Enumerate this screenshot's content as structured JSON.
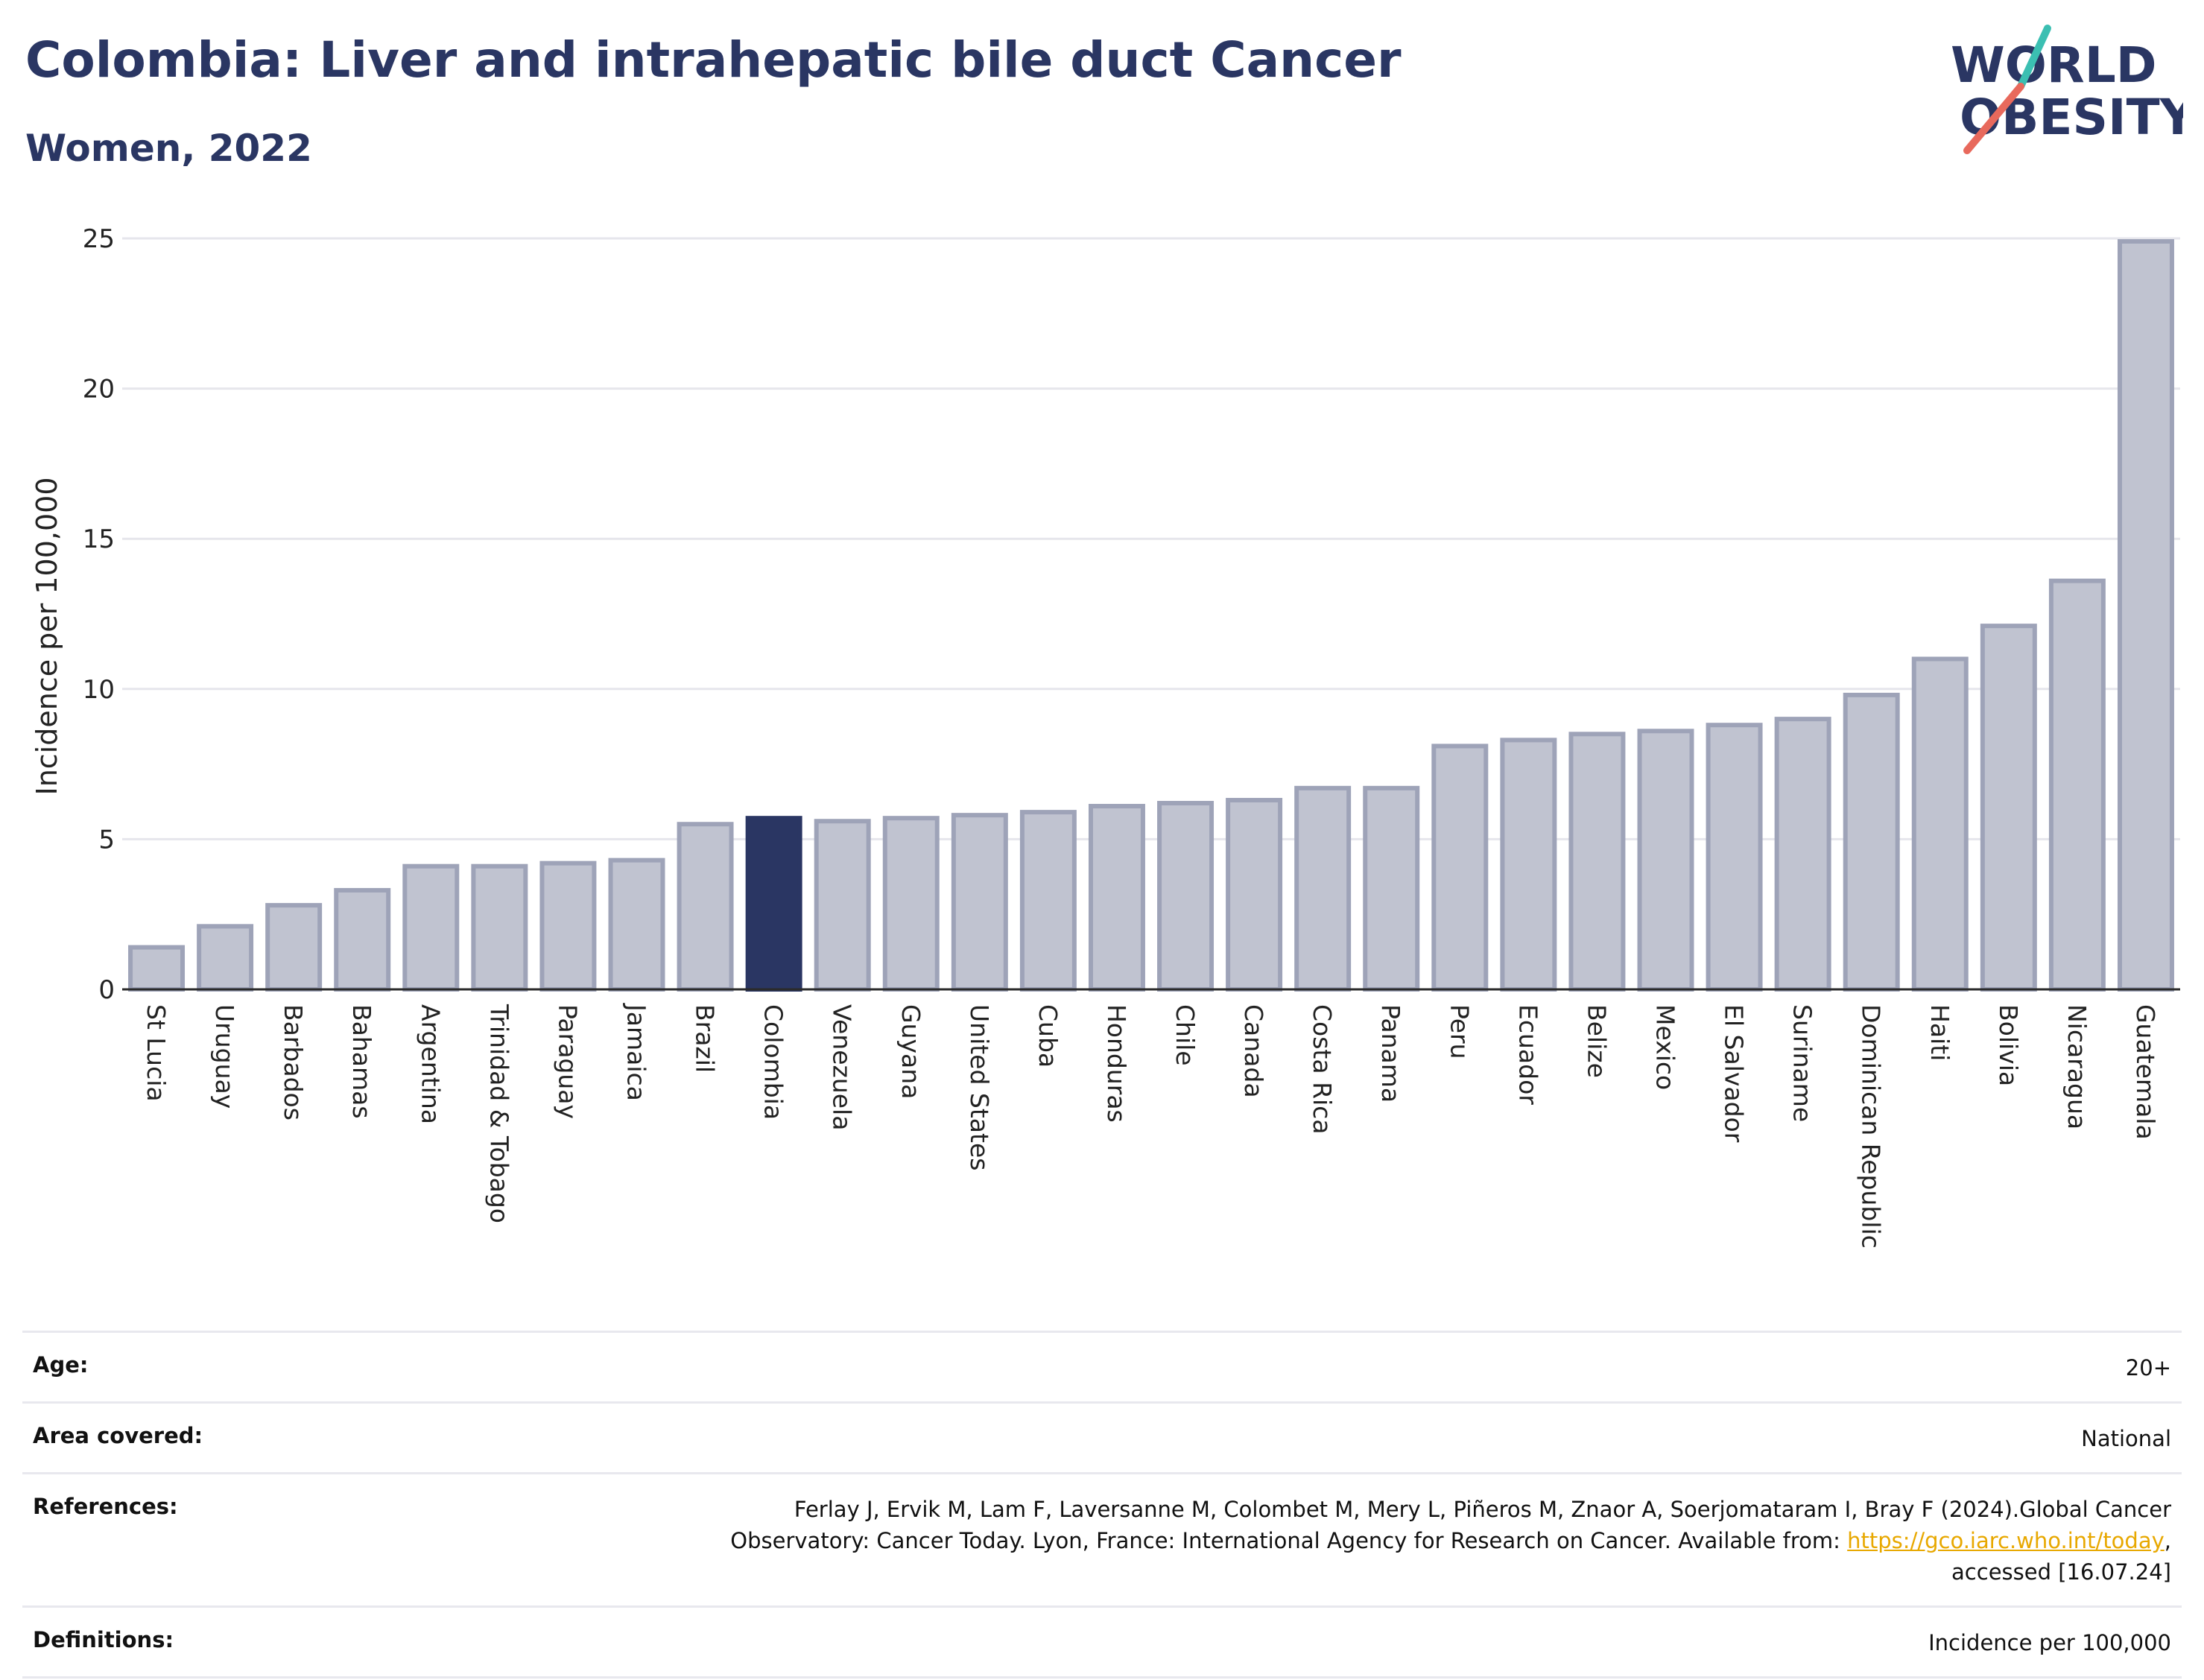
{
  "header": {
    "title": "Colombia: Liver and intrahepatic bile duct Cancer",
    "subtitle": "Women, 2022"
  },
  "logo": {
    "line1": "WORLD",
    "line2": "OBESITY",
    "text_color": "#2a3663",
    "slash_colors": [
      "#3bbfb2",
      "#e8695c"
    ]
  },
  "colors": {
    "bar_default": "#c0c3d0",
    "bar_border": "#9ea3b8",
    "bar_highlight": "#2a3663",
    "grid": "#e6e6ec",
    "link": "#e8a800"
  },
  "chart_data": {
    "type": "bar",
    "ylabel": "Incidence per 100,000",
    "ylim": [
      0,
      25
    ],
    "yticks": [
      0,
      5,
      10,
      15,
      20,
      25
    ],
    "grid": true,
    "highlight": "Colombia",
    "categories": [
      "St Lucia",
      "Uruguay",
      "Barbados",
      "Bahamas",
      "Argentina",
      "Trinidad & Tobago",
      "Paraguay",
      "Jamaica",
      "Brazil",
      "Colombia",
      "Venezuela",
      "Guyana",
      "United States",
      "Cuba",
      "Honduras",
      "Chile",
      "Canada",
      "Costa Rica",
      "Panama",
      "Peru",
      "Ecuador",
      "Belize",
      "Mexico",
      "El Salvador",
      "Suriname",
      "Dominican Republic",
      "Haiti",
      "Bolivia",
      "Nicaragua",
      "Guatemala"
    ],
    "values": [
      1.4,
      2.1,
      2.8,
      3.3,
      4.1,
      4.1,
      4.2,
      4.3,
      5.5,
      5.7,
      5.6,
      5.7,
      5.8,
      5.9,
      6.1,
      6.2,
      6.3,
      6.7,
      6.7,
      8.1,
      8.3,
      8.5,
      8.6,
      8.8,
      9.0,
      9.8,
      11.0,
      12.1,
      13.6,
      24.9
    ]
  },
  "info": {
    "age_label": "Age:",
    "age_value": "20+",
    "area_label": "Area covered:",
    "area_value": "National",
    "references_label": "References:",
    "references_line1": "Ferlay J, Ervik M, Lam F, Laversanne M, Colombet M, Mery L, Piñeros M, Znaor A, Soerjomataram I, Bray F (2024).Global Cancer",
    "references_line2_pre": "Observatory: Cancer Today. Lyon, France: International Agency for Research on Cancer. Available from: ",
    "references_link": "https://gco.iarc.who.int/today",
    "references_line2_post": ",",
    "references_line3": "accessed [16.07.24]",
    "definitions_label": "Definitions:",
    "definitions_value": "Incidence per 100,000"
  }
}
